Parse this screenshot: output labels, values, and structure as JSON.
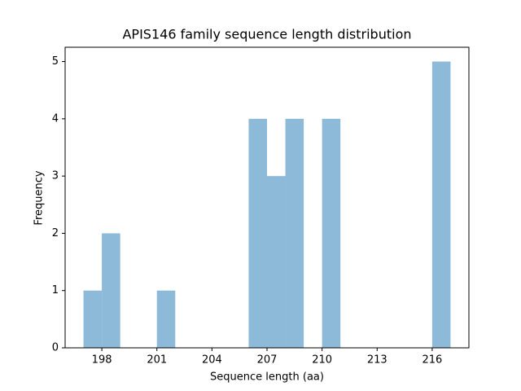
{
  "chart_data": {
    "type": "histogram",
    "title": "APIS146 family sequence length distribution",
    "x_label": "Sequence length (aa)",
    "y_label": "Frequency",
    "bins": [
      197,
      198,
      199,
      200,
      201,
      202,
      203,
      204,
      205,
      206,
      207,
      208,
      209,
      210,
      211,
      212,
      213,
      214,
      215,
      216,
      217
    ],
    "values": [
      1,
      2,
      0,
      0,
      1,
      0,
      0,
      0,
      0,
      4,
      3,
      4,
      0,
      4,
      0,
      0,
      0,
      0,
      0,
      5
    ],
    "color": "#8ebad9",
    "xlim": [
      196,
      218
    ],
    "xticks": [
      198,
      201,
      204,
      207,
      210,
      213,
      216
    ],
    "ylim": [
      0,
      5.25
    ],
    "yticks": [
      0,
      1,
      2,
      3,
      4,
      5
    ],
    "grid": false
  }
}
